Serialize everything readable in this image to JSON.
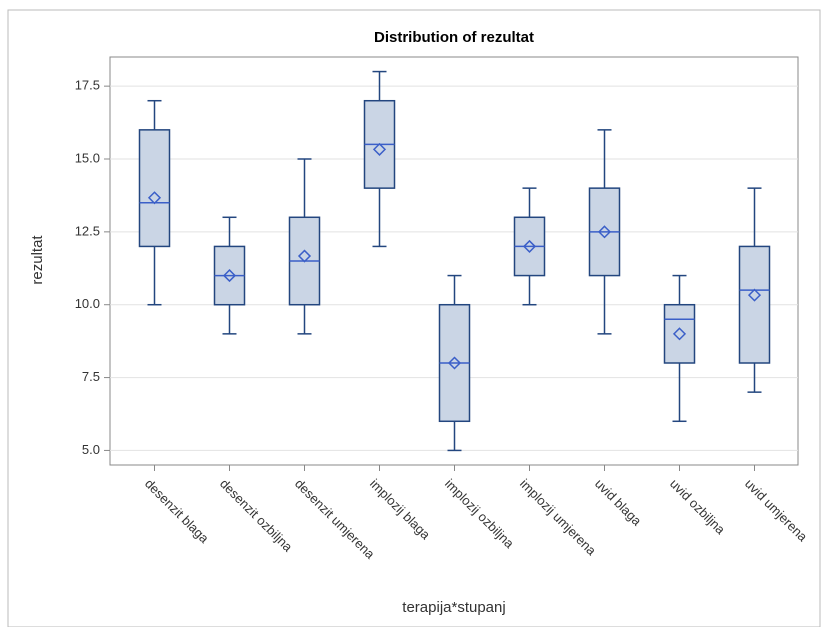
{
  "chart_data": {
    "type": "box",
    "title": "Distribution of rezultat",
    "x_label": "terapija*stupanj",
    "y_label": "rezultat",
    "categories": [
      "desenzit blaga",
      "desenzit ozbiljna",
      "desenzit umjerena",
      "implozij blaga",
      "implozij ozbiljna",
      "implozij umjerena",
      "uvid blaga",
      "uvid ozbiljna",
      "uvid umjerena"
    ],
    "min": [
      10,
      9,
      9,
      12,
      5,
      10,
      9,
      6,
      7
    ],
    "q1": [
      12,
      10,
      10,
      14,
      6,
      11,
      11,
      8,
      8
    ],
    "median": [
      13.5,
      11,
      11.5,
      15.5,
      8,
      12,
      12.5,
      9.5,
      10.5
    ],
    "q3": [
      16,
      12,
      13,
      17,
      10,
      13,
      14,
      10,
      12
    ],
    "max": [
      17,
      13,
      15,
      18,
      11,
      14,
      16,
      11,
      14
    ],
    "mean": [
      13.67,
      11,
      11.67,
      15.33,
      8,
      12,
      12.5,
      9,
      10.33
    ],
    "color": "#cad5e5",
    "line_color": "#23467f",
    "mean_color": "#3b5fc8",
    "ylim": [
      4.5,
      18.5
    ],
    "yticks": [
      {
        "value": 5,
        "label": "5.0"
      },
      {
        "value": 7.5,
        "label": "7.5"
      },
      {
        "value": 10,
        "label": "10.0"
      },
      {
        "value": 12.5,
        "label": "12.5"
      },
      {
        "value": 15,
        "label": "15.0"
      },
      {
        "value": 17.5,
        "label": "17.5"
      }
    ],
    "grid": true
  }
}
